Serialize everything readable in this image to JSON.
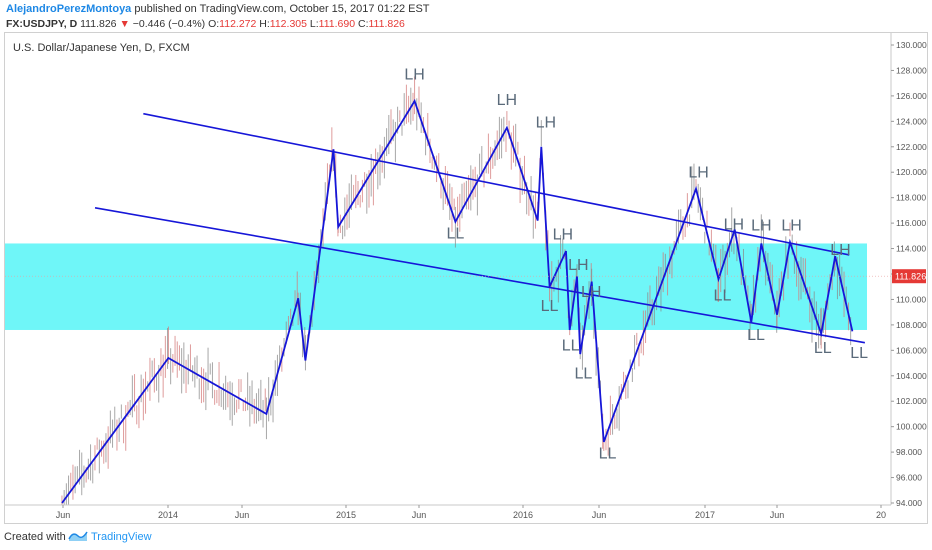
{
  "header": {
    "author": "AlejandroPerezMontoya",
    "published_text": "published on TradingView.com, October 15, 2017 01:22 EST",
    "symbol": "FX:USDJPY, D",
    "last": "111.826",
    "change_arrow": "▼",
    "change": "−0.446 (−0.4%)",
    "o_label": "O:",
    "o_value": "112.272",
    "h_label": "H:",
    "h_value": "112.305",
    "l_label": "L:",
    "l_value": "111.690",
    "c_label": "C:",
    "c_value": "111.826"
  },
  "footer": {
    "created_with": "Created with",
    "brand": "TradingView"
  },
  "colors": {
    "zone": "#6ff6f8",
    "trend": "#1616d8",
    "candle_up": "#8a8a8a",
    "candle_down": "#d37a7a",
    "annotation": "#5a6a7a",
    "price_badge": "#e53935"
  },
  "chart_data": {
    "type": "line",
    "title": "U.S. Dollar/Japanese Yen, D, FXCM",
    "x_ticks": [
      "Jun",
      "2014",
      "Jun",
      "2015",
      "Jun",
      "2016",
      "Jun",
      "2017",
      "Jun",
      "20"
    ],
    "y_ticks": [
      "130.000",
      "128.000",
      "126.000",
      "124.000",
      "122.000",
      "120.000",
      "118.000",
      "116.000",
      "114.000",
      "112.000",
      "110.000",
      "108.000",
      "106.000",
      "104.000",
      "102.000",
      "100.000",
      "98.000",
      "96.000",
      "94.000"
    ],
    "ylim": [
      94,
      130
    ],
    "x_axis": "time (2013-04 to 2017-11)",
    "current_price": "111.826",
    "zone": {
      "from": 107.6,
      "to": 114.4
    },
    "series": [
      {
        "values": [
          [
            "2013-06-13",
            94.0
          ],
          [
            "2014-01-02",
            105.4
          ],
          [
            "2014-08-01",
            101.0
          ],
          [
            "2014-10-01",
            110.1
          ],
          [
            "2014-10-15",
            105.2
          ],
          [
            "2014-12-08",
            121.8
          ],
          [
            "2014-12-17",
            115.7
          ],
          [
            "2015-06-05",
            125.6
          ],
          [
            "2015-08-24",
            116.1
          ],
          [
            "2015-12-01",
            123.5
          ],
          [
            "2016-02-02",
            116.2
          ],
          [
            "2016-02-10",
            122.0
          ],
          [
            "2016-02-28",
            111.0
          ],
          [
            "2016-04-04",
            113.8
          ],
          [
            "2016-04-12",
            107.6
          ],
          [
            "2016-04-28",
            111.8
          ],
          [
            "2016-05-05",
            105.7
          ],
          [
            "2016-05-30",
            111.4
          ],
          [
            "2016-06-24",
            98.8
          ],
          [
            "2016-12-15",
            118.7
          ],
          [
            "2017-02-01",
            111.6
          ],
          [
            "2017-03-10",
            115.5
          ],
          [
            "2017-04-17",
            108.2
          ],
          [
            "2017-05-10",
            114.4
          ],
          [
            "2017-06-15",
            108.8
          ],
          [
            "2017-07-10",
            114.5
          ],
          [
            "2017-09-08",
            107.3
          ],
          [
            "2017-10-05",
            113.4
          ],
          [
            "2017-11-07",
            107.5
          ]
        ]
      }
    ],
    "trendlines": [
      {
        "from": [
          "2013-11-15",
          124.6
        ],
        "to": [
          "2017-11-01",
          113.5
        ]
      },
      {
        "from": [
          "2013-08-15",
          117.2
        ],
        "to": [
          "2017-12-01",
          106.6
        ]
      }
    ],
    "annotations": [
      {
        "text": "LH",
        "x": "2015-06-05",
        "y": 127.3
      },
      {
        "text": "LH",
        "x": "2015-12-01",
        "y": 125.3
      },
      {
        "text": "LH",
        "x": "2016-02-20",
        "y": 123.5
      },
      {
        "text": "LL",
        "x": "2015-08-24",
        "y": 114.8
      },
      {
        "text": "LH",
        "x": "2016-03-28",
        "y": 114.7
      },
      {
        "text": "LL",
        "x": "2016-02-28",
        "y": 109.1
      },
      {
        "text": "LH",
        "x": "2016-05-01",
        "y": 112.3
      },
      {
        "text": "LH",
        "x": "2016-05-29",
        "y": 110.2
      },
      {
        "text": "LL",
        "x": "2016-04-14",
        "y": 106.0
      },
      {
        "text": "LL",
        "x": "2016-05-12",
        "y": 103.8
      },
      {
        "text": "LL",
        "x": "2016-07-01",
        "y": 97.5
      },
      {
        "text": "LH",
        "x": "2016-12-20",
        "y": 119.6
      },
      {
        "text": "LH",
        "x": "2017-03-08",
        "y": 115.5
      },
      {
        "text": "LH",
        "x": "2017-05-10",
        "y": 115.4
      },
      {
        "text": "LH",
        "x": "2017-07-13",
        "y": 115.4
      },
      {
        "text": "LH",
        "x": "2017-10-15",
        "y": 113.5
      },
      {
        "text": "LL",
        "x": "2017-02-10",
        "y": 109.9
      },
      {
        "text": "LL",
        "x": "2017-04-28",
        "y": 106.8
      },
      {
        "text": "LL",
        "x": "2017-09-11",
        "y": 105.8
      },
      {
        "text": "LL",
        "x": "2017-11-20",
        "y": 105.4
      }
    ]
  }
}
